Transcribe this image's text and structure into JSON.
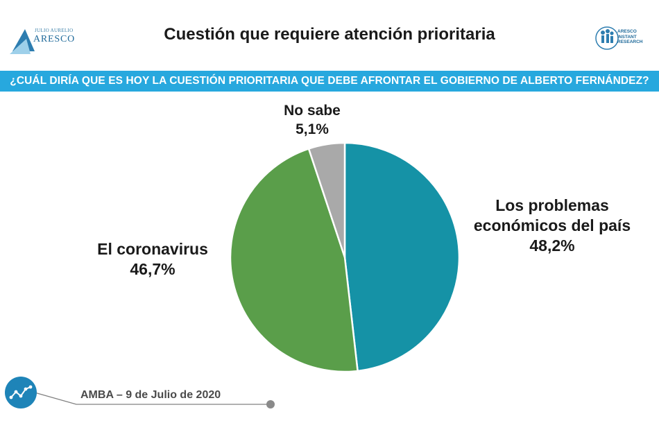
{
  "header": {
    "title": "Cuestión que requiere atención prioritaria",
    "logo_left": {
      "small_text": "JULIO AURELIO",
      "big_text": "ARESCO"
    },
    "logo_right": {
      "lines": [
        "ARESCO",
        "INSTANT",
        "RESEARCH"
      ]
    }
  },
  "question": "¿CUÁL DIRÍA QUE ES HOY LA CUESTIÓN PRIORITARIA QUE DEBE AFRONTAR EL GOBIERNO DE ALBERTO FERNÁNDEZ?",
  "colors": {
    "bar": "#27a8de",
    "economia": "#1592a6",
    "coronavirus": "#5a9e4a",
    "nosabe": "#a9a9a9",
    "brand": "#1f6a9a"
  },
  "chart_data": {
    "type": "pie",
    "title": "",
    "slices": [
      {
        "label_lines": [
          "Los problemas",
          "económicos del país"
        ],
        "value": 48.2,
        "value_label": "48,2%",
        "color": "#1592a6"
      },
      {
        "label_lines": [
          "El coronavirus"
        ],
        "value": 46.7,
        "value_label": "46,7%",
        "color": "#5a9e4a"
      },
      {
        "label_lines": [
          "No sabe"
        ],
        "value": 5.1,
        "value_label": "5,1%",
        "color": "#a9a9a9"
      }
    ]
  },
  "footer": {
    "text": "AMBA – 9 de Julio de 2020",
    "icon": "trend-line-icon"
  }
}
